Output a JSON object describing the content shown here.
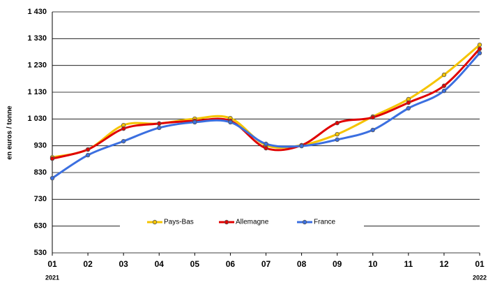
{
  "chart_data": {
    "type": "line",
    "y_label": "en euros / tonne",
    "categories": [
      "01",
      "02",
      "03",
      "04",
      "05",
      "06",
      "07",
      "08",
      "09",
      "10",
      "11",
      "12",
      "01"
    ],
    "year_labels": [
      "2021",
      "2022"
    ],
    "series": [
      {
        "name": "Pays-Bas",
        "color": "#f5c400",
        "values": [
          887,
          916,
          1007,
          1013,
          1031,
          1033,
          932,
          932,
          973,
          1039,
          1104,
          1195,
          1307
        ]
      },
      {
        "name": "Allemagne",
        "color": "#e00000",
        "values": [
          882,
          916,
          994,
          1013,
          1023,
          1023,
          921,
          932,
          1015,
          1036,
          1091,
          1154,
          1292
        ]
      },
      {
        "name": "France",
        "color": "#3b6fe0",
        "values": [
          809,
          895,
          947,
          997,
          1018,
          1018,
          937,
          929,
          953,
          989,
          1070,
          1135,
          1276
        ]
      }
    ],
    "ylim": [
      530,
      1430
    ],
    "yticks": [
      530,
      630,
      730,
      830,
      930,
      {
        "value": 1030,
        "label": "1 030"
      },
      {
        "value": 1130,
        "label": "1 130"
      },
      {
        "value": 1230,
        "label": "1 230"
      },
      {
        "value": 1330,
        "label": "1 330"
      },
      {
        "value": 1430,
        "label": "1 430"
      }
    ],
    "grid": true
  }
}
